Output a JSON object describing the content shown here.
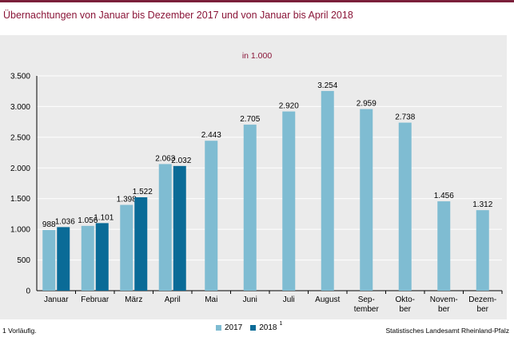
{
  "title": "Übernachtungen von Januar bis Dezember 2017 und von Januar bis April 2018",
  "footnote": "1 Vorläufig.",
  "source": "Statistisches Landesamt Rheinland-Pfalz",
  "colors": {
    "title": "#8a1538",
    "series_2017": "#7fbcd2",
    "series_2018": "#0a6b97",
    "frame": "#ebebeb",
    "grid": "#ffffff"
  },
  "chart_data": {
    "type": "bar",
    "unit_label": "in 1.000",
    "categories": [
      [
        "Januar"
      ],
      [
        "Februar"
      ],
      [
        "März"
      ],
      [
        "April"
      ],
      [
        "Mai"
      ],
      [
        "Juni"
      ],
      [
        "Juli"
      ],
      [
        "August"
      ],
      [
        "Sep-",
        "tember"
      ],
      [
        "Okto-",
        "ber"
      ],
      [
        "Novem-",
        "ber"
      ],
      [
        "Dezem-",
        "ber"
      ]
    ],
    "series": [
      {
        "name": "2017",
        "values": [
          988,
          1056,
          1398,
          2063,
          2443,
          2705,
          2920,
          3254,
          2959,
          2738,
          1456,
          1312
        ],
        "labels": [
          "988",
          "1.056",
          "1.398",
          "2.063",
          "2.443",
          "2.705",
          "2.920",
          "3.254",
          "2.959",
          "2.738",
          "1.456",
          "1.312"
        ]
      },
      {
        "name": "2018",
        "name_sup": "1",
        "values": [
          1036,
          1101,
          1522,
          2032,
          null,
          null,
          null,
          null,
          null,
          null,
          null,
          null
        ],
        "labels": [
          "1.036",
          "1.101",
          "1.522",
          "2.032",
          null,
          null,
          null,
          null,
          null,
          null,
          null,
          null
        ]
      }
    ],
    "ylim": [
      0,
      3500
    ],
    "yticks": [
      0,
      500,
      1000,
      1500,
      2000,
      2500,
      3000,
      3500
    ],
    "ytick_labels": [
      "0",
      "500",
      "1.000",
      "1.500",
      "2.000",
      "2.500",
      "3.000",
      "3.500"
    ],
    "grid": true,
    "legend_position": "bottom"
  }
}
